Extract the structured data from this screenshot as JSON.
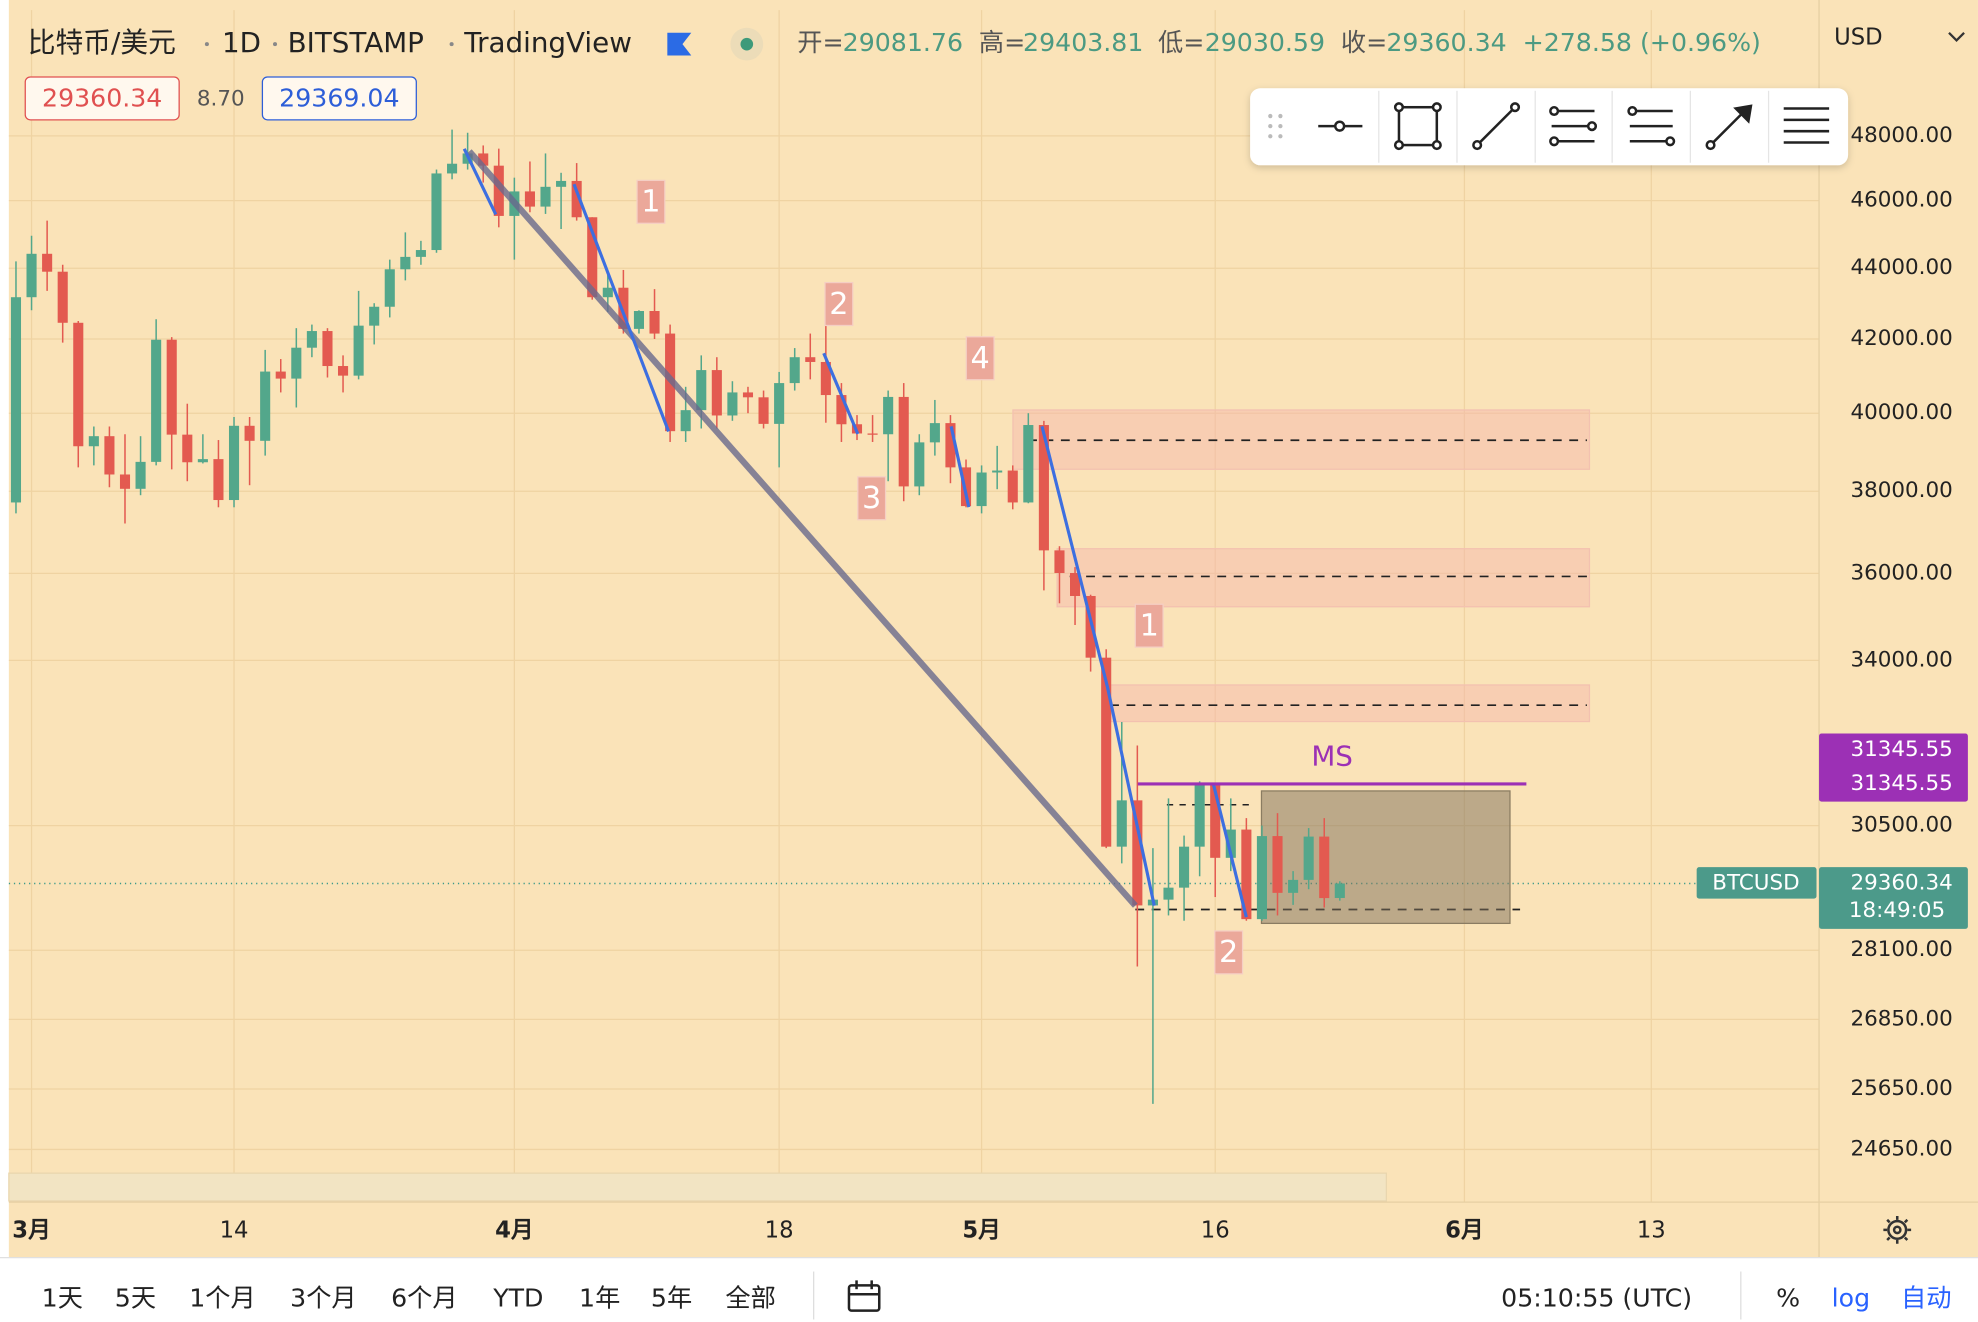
{
  "ui": {
    "symbol_name": "比特币/美元",
    "interval": "1D",
    "exchange": "BITSTAMP",
    "source": "TradingView",
    "open_label": "开=",
    "high_label": "高=",
    "low_label": "低=",
    "close_label": "收=",
    "change": "+278.58 (+0.96%)",
    "bid": "29360.34",
    "spread": "8.70",
    "ask": "29369.04",
    "currency": "USD",
    "ticker": "BTCUSD",
    "countdown": "18:49:05",
    "ranges": [
      "1天",
      "5天",
      "1个月",
      "3个月",
      "6个月",
      "YTD",
      "1年",
      "5年",
      "全部"
    ],
    "clock": "05:10:55 (UTC)",
    "percent": "%",
    "log": "log",
    "auto": "自动"
  },
  "chart_data": {
    "type": "candlestick",
    "log_scale": true,
    "grid": true,
    "up_color": "#53a78b",
    "down_color": "#e35a50",
    "x": [
      "02-28",
      "03-01",
      "03-02",
      "03-03",
      "03-04",
      "03-05",
      "03-06",
      "03-07",
      "03-08",
      "03-09",
      "03-10",
      "03-11",
      "03-12",
      "03-13",
      "03-14",
      "03-15",
      "03-16",
      "03-17",
      "03-18",
      "03-19",
      "03-20",
      "03-21",
      "03-22",
      "03-23",
      "03-24",
      "03-25",
      "03-26",
      "03-27",
      "03-28",
      "03-29",
      "03-30",
      "03-31",
      "04-01",
      "04-02",
      "04-03",
      "04-04",
      "04-05",
      "04-06",
      "04-07",
      "04-08",
      "04-09",
      "04-10",
      "04-11",
      "04-12",
      "04-13",
      "04-14",
      "04-15",
      "04-16",
      "04-17",
      "04-18",
      "04-19",
      "04-20",
      "04-21",
      "04-22",
      "04-23",
      "04-24",
      "04-25",
      "04-26",
      "04-27",
      "04-28",
      "04-29",
      "04-30",
      "05-01",
      "05-02",
      "05-03",
      "05-04",
      "05-05",
      "05-06",
      "05-07",
      "05-08",
      "05-09",
      "05-10",
      "05-11",
      "05-12",
      "05-13",
      "05-14",
      "05-15",
      "05-16",
      "05-17",
      "05-18",
      "05-19",
      "05-20",
      "05-21",
      "05-22",
      "05-23",
      "05-24"
    ],
    "open": [
      37720,
      43170,
      44420,
      43900,
      42450,
      39140,
      39400,
      38420,
      38060,
      38740,
      41980,
      39440,
      38730,
      38810,
      37780,
      39670,
      39280,
      41110,
      40920,
      41760,
      42220,
      41260,
      41000,
      42370,
      42900,
      43970,
      44330,
      44530,
      46830,
      47130,
      47450,
      47070,
      45540,
      46280,
      45820,
      46420,
      46600,
      45500,
      43170,
      43440,
      42280,
      42780,
      42150,
      39530,
      40080,
      41150,
      39940,
      40550,
      40420,
      39720,
      40800,
      41500,
      41370,
      40480,
      39710,
      39470,
      39450,
      40430,
      38120,
      39240,
      39740,
      38600,
      37630,
      38470,
      38520,
      37720,
      39690,
      36550,
      36010,
      35470,
      34060,
      30080,
      31010,
      28940,
      29050,
      29280,
      30080,
      31320,
      29860,
      30420,
      28680,
      30290,
      29180,
      29430,
      30280,
      29081.76
    ],
    "high": [
      44200,
      44950,
      45400,
      44100,
      42500,
      39650,
      39650,
      39450,
      39400,
      42550,
      42050,
      40250,
      39450,
      39300,
      39900,
      39900,
      41700,
      41450,
      42300,
      42400,
      42300,
      41550,
      43350,
      43000,
      44250,
      45050,
      44800,
      46950,
      48200,
      48100,
      47700,
      47600,
      46700,
      47200,
      47450,
      46850,
      47150,
      45500,
      43900,
      43950,
      42800,
      43400,
      42400,
      40700,
      41550,
      41500,
      40850,
      40700,
      40600,
      41100,
      41750,
      42150,
      42900,
      40800,
      39950,
      39950,
      40600,
      40800,
      39450,
      40350,
      39950,
      38800,
      38650,
      39150,
      38650,
      40000,
      39800,
      36650,
      36150,
      35500,
      34250,
      32650,
      32150,
      30050,
      31050,
      30300,
      31400,
      31320,
      31050,
      30650,
      30500,
      30750,
      29600,
      30450,
      30650,
      29403.81
    ],
    "low": [
      37450,
      42800,
      43350,
      41900,
      38600,
      38650,
      38100,
      37200,
      37900,
      38650,
      38550,
      38250,
      38700,
      37600,
      37600,
      38150,
      38900,
      40550,
      40150,
      41500,
      40950,
      40550,
      40900,
      41850,
      42600,
      43650,
      44100,
      44450,
      46650,
      46950,
      46550,
      45200,
      44250,
      45650,
      45600,
      45150,
      45400,
      43100,
      42750,
      42150,
      42150,
      42000,
      39250,
      39250,
      39600,
      39600,
      39800,
      40000,
      39600,
      38600,
      40600,
      40900,
      39750,
      39250,
      39300,
      39250,
      38250,
      37750,
      37900,
      38900,
      38200,
      37600,
      37450,
      38050,
      37550,
      37700,
      35600,
      35300,
      34800,
      33750,
      30050,
      29750,
      27800,
      25400,
      28750,
      28650,
      29500,
      29100,
      29600,
      28650,
      28650,
      28750,
      28950,
      29250,
      28900,
      29030.59
    ],
    "close": [
      43170,
      44420,
      43900,
      42450,
      39140,
      39400,
      38420,
      38060,
      38740,
      41980,
      39440,
      38730,
      38810,
      37780,
      39670,
      39280,
      41110,
      40920,
      41760,
      42220,
      41260,
      41000,
      42370,
      42900,
      43970,
      44330,
      44530,
      46830,
      47130,
      47450,
      47070,
      45540,
      46280,
      45820,
      46420,
      46600,
      45500,
      43170,
      43440,
      42280,
      42780,
      42150,
      39530,
      40080,
      41150,
      39940,
      40550,
      40420,
      39720,
      40800,
      41500,
      41370,
      40480,
      39710,
      39470,
      39450,
      40430,
      38120,
      39240,
      39740,
      38600,
      37630,
      38470,
      38520,
      37720,
      39690,
      36550,
      36010,
      35470,
      34060,
      30080,
      31010,
      28940,
      29050,
      29280,
      30080,
      31320,
      29860,
      30420,
      28680,
      30290,
      29180,
      29430,
      30280,
      29080,
      29360.34
    ],
    "xlim": [
      "02-27",
      "06-23"
    ],
    "xticks": [
      {
        "value": "03-01",
        "label": "3月"
      },
      {
        "value": "03-14",
        "label": "14"
      },
      {
        "value": "04-01",
        "label": "4月"
      },
      {
        "value": "04-18",
        "label": "18"
      },
      {
        "value": "05-01",
        "label": "5月"
      },
      {
        "value": "05-16",
        "label": "16"
      },
      {
        "value": "06-01",
        "label": "6月"
      },
      {
        "value": "06-13",
        "label": "13"
      }
    ],
    "ylim": [
      23810,
      52140
    ],
    "yticks": [
      {
        "value": 48000,
        "label": "48000.00"
      },
      {
        "value": 46000,
        "label": "46000.00"
      },
      {
        "value": 44000,
        "label": "44000.00"
      },
      {
        "value": 42000,
        "label": "42000.00"
      },
      {
        "value": 40000,
        "label": "40000.00"
      },
      {
        "value": 38000,
        "label": "38000.00"
      },
      {
        "value": 36000,
        "label": "36000.00"
      },
      {
        "value": 34000,
        "label": "34000.00"
      },
      {
        "value": 30500,
        "label": "30500.00"
      },
      {
        "value": 28100,
        "label": "28100.00"
      },
      {
        "value": 26850,
        "label": "26850.00"
      },
      {
        "value": 25650,
        "label": "25650.00"
      },
      {
        "value": 24650,
        "label": "24650.00"
      }
    ],
    "ms_label": "MS",
    "ms_levels": [
      31345.55,
      31345.55
    ],
    "annotations": [
      "1",
      "2",
      "4",
      "3",
      "1",
      "2"
    ]
  }
}
